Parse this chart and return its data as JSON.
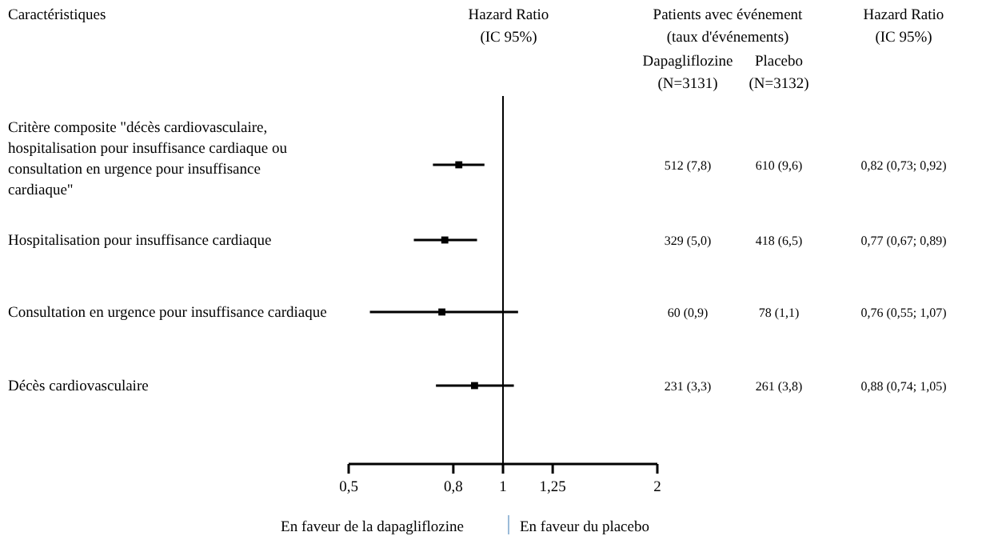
{
  "chart_data": {
    "type": "scatter",
    "orientation": "horizontal",
    "log": "x",
    "marker": "square",
    "categories": [
      "Critère composite \"décès cardiovasculaire, hospitalisation pour insuffisance cardiaque ou consultation en urgence pour insuffisance cardiaque\"",
      "Hospitalisation pour insuffisance cardiaque",
      "Consultation en urgence pour insuffisance cardiaque",
      "Décès cardiovasculaire"
    ],
    "values": [
      0.82,
      0.77,
      0.76,
      0.88
    ],
    "errors": [
      [
        0.73,
        0.92
      ],
      [
        0.67,
        0.89
      ],
      [
        0.55,
        1.07
      ],
      [
        0.74,
        1.05
      ]
    ],
    "value_labels": [
      "0,82 (0,73; 0,92)",
      "0,77 (0,67; 0,89)",
      "0,76 (0,55; 1,07)",
      "0,88 (0,74; 1,05)"
    ],
    "color": "#000000",
    "xlabel": "Hazard Ratio (IC 95%)",
    "xlim": [
      0.5,
      2
    ],
    "xticks": [
      {
        "value": 0.5,
        "label": "0,5"
      },
      {
        "value": 0.8,
        "label": "0,8"
      },
      1,
      {
        "value": 1.25,
        "label": "1,25"
      },
      2
    ],
    "ref_lines": [
      {
        "axis": "x",
        "value": 1,
        "color": "#000000"
      }
    ],
    "annotations": [
      "Caractéristiques",
      "Patients avec événement (taux d'événements)",
      "Dapagliflozine (N=3131)",
      "Placebo (N=3132)",
      "Hazard Ratio (IC 95%)",
      "En faveur de la dapagliflozine",
      "En faveur du placebo",
      "512 (7,8)",
      "329 (5,0)",
      "60 (0,9)",
      "231 (3,3)",
      "610 (9,6)",
      "418 (6,5)",
      "78 (1,1)",
      "261 (3,8)"
    ]
  }
}
